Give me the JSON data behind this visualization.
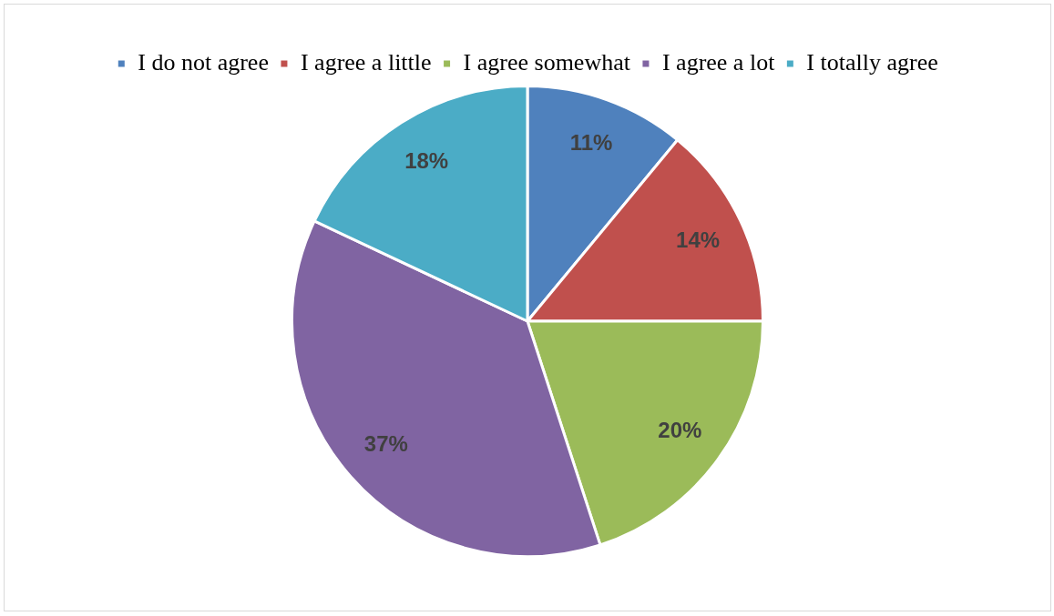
{
  "chart_data": {
    "type": "pie",
    "categories": [
      "I do not agree",
      "I agree a little",
      "I agree somewhat",
      "I agree a lot",
      "I totally agree"
    ],
    "values": [
      11,
      14,
      20,
      37,
      18
    ],
    "colors": [
      "#4f81bd",
      "#c0504d",
      "#9bbb59",
      "#8064a2",
      "#4bacc6"
    ],
    "value_labels": [
      "11%",
      "14%",
      "20%",
      "37%",
      "18%"
    ],
    "legend": "top"
  }
}
